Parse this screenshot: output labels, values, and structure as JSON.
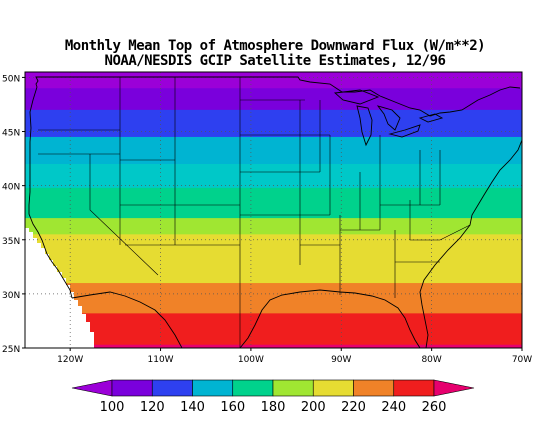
{
  "title_line1": "Monthly Mean Top of Atmosphere Downward Flux (W/m**2)",
  "title_line2": "NOAA/NESDIS GCIP Satellite Estimates, 12/96",
  "map": {
    "lon_range": [
      -125,
      -70
    ],
    "lat_range": [
      25,
      50.5
    ],
    "lat_ticks": [
      {
        "value": 50,
        "label": "50N"
      },
      {
        "value": 45,
        "label": "45N"
      },
      {
        "value": 40,
        "label": "40N"
      },
      {
        "value": 35,
        "label": "35N"
      },
      {
        "value": 30,
        "label": "30N"
      },
      {
        "value": 25,
        "label": "25N"
      }
    ],
    "lon_ticks": [
      {
        "value": -120,
        "label": "120W"
      },
      {
        "value": -110,
        "label": "110W"
      },
      {
        "value": -100,
        "label": "100W"
      },
      {
        "value": -90,
        "label": "90W"
      },
      {
        "value": -80,
        "label": "80W"
      },
      {
        "value": -70,
        "label": "70W"
      }
    ],
    "bands": [
      {
        "lat_max": 50.5,
        "lat_min": 49.0,
        "color": "#9b00d8"
      },
      {
        "lat_max": 49.0,
        "lat_min": 47.0,
        "color": "#7a00dc"
      },
      {
        "lat_max": 47.0,
        "lat_min": 44.5,
        "color": "#2e40f0"
      },
      {
        "lat_max": 44.5,
        "lat_min": 42.0,
        "color": "#00b4d2"
      },
      {
        "lat_max": 42.0,
        "lat_min": 39.8,
        "color": "#00c8c8"
      },
      {
        "lat_max": 39.8,
        "lat_min": 37.0,
        "color": "#00d28c"
      },
      {
        "lat_max": 37.0,
        "lat_min": 35.5,
        "color": "#a0e632"
      },
      {
        "lat_max": 35.5,
        "lat_min": 32.5,
        "color": "#e6dc32"
      },
      {
        "lat_max": 32.5,
        "lat_min": 31.0,
        "color": "#e6dc32"
      },
      {
        "lat_max": 31.0,
        "lat_min": 28.2,
        "color": "#f08228"
      },
      {
        "lat_max": 28.2,
        "lat_min": 25.3,
        "color": "#f01e1e"
      },
      {
        "lat_max": 25.3,
        "lat_min": 25.0,
        "color": "#e6006e"
      }
    ]
  },
  "colorbar": {
    "colors": [
      "#9b00d8",
      "#7a00dc",
      "#2e40f0",
      "#00b4d2",
      "#00d28c",
      "#a0e632",
      "#e6dc32",
      "#f08228",
      "#f01e1e",
      "#e6006e"
    ],
    "labels": [
      "100",
      "120",
      "140",
      "160",
      "180",
      "200",
      "220",
      "240",
      "260"
    ]
  }
}
